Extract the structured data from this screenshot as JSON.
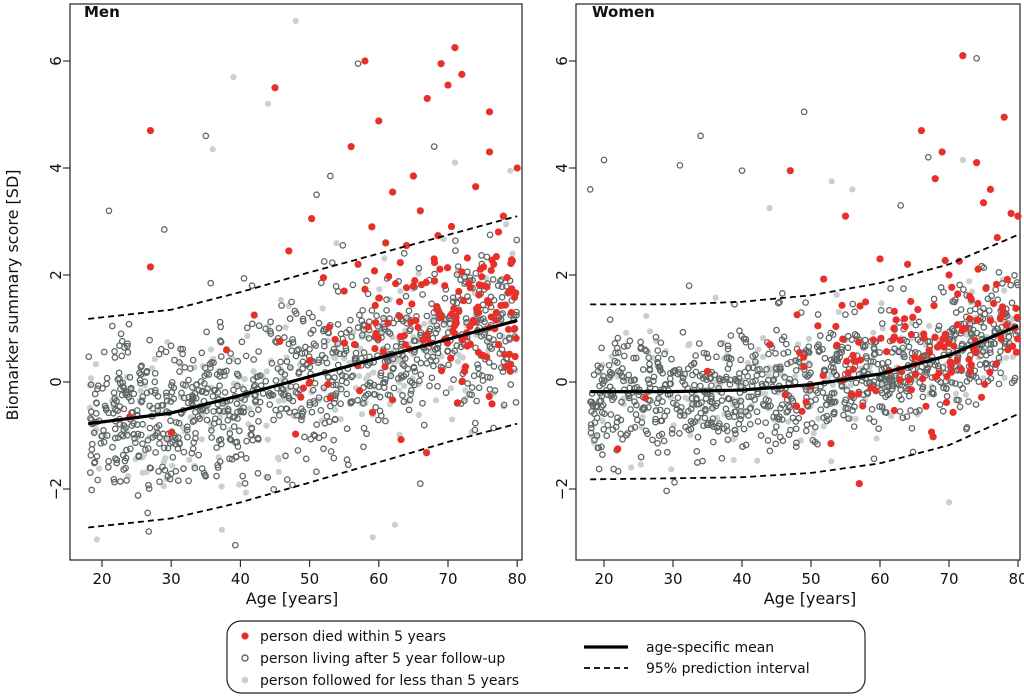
{
  "chart_data": [
    {
      "type": "scatter",
      "title": "Men",
      "xlabel": "Age [years]",
      "ylabel": "Biomarker summary score [SD]",
      "xlim": [
        16,
        82
      ],
      "ylim": [
        -3.1,
        6.9
      ],
      "x_ticks": [
        "20",
        "30",
        "40",
        "50",
        "60",
        "70",
        "80"
      ],
      "y_ticks": [
        "−2",
        "0",
        "2",
        "4",
        "6"
      ],
      "grid": false,
      "curves": {
        "age_specific_mean": {
          "x": [
            18,
            30,
            40,
            50,
            60,
            70,
            80
          ],
          "y": [
            -0.78,
            -0.58,
            -0.25,
            0.1,
            0.45,
            0.8,
            1.15
          ]
        },
        "upper_95": {
          "x": [
            18,
            30,
            40,
            50,
            60,
            70,
            80
          ],
          "y": [
            1.18,
            1.35,
            1.68,
            2.05,
            2.4,
            2.75,
            3.1
          ]
        },
        "lower_95": {
          "x": [
            18,
            30,
            40,
            50,
            60,
            70,
            80
          ],
          "y": [
            -2.72,
            -2.55,
            -2.25,
            -1.88,
            -1.5,
            -1.12,
            -0.78
          ]
        }
      },
      "died_points": {
        "x": [
          27,
          27,
          45,
          58,
          71,
          69,
          72,
          70,
          67,
          60,
          76,
          56,
          76,
          62,
          65,
          74,
          66,
          52,
          47,
          59,
          64,
          68,
          73,
          78,
          80,
          55,
          57,
          61,
          63,
          69,
          71,
          75,
          77,
          79,
          24,
          42,
          50,
          53,
          38,
          30
        ],
        "y": [
          4.7,
          2.15,
          5.5,
          6.0,
          6.25,
          5.95,
          5.75,
          5.55,
          5.3,
          4.88,
          5.05,
          4.4,
          4.3,
          3.55,
          3.85,
          3.65,
          3.2,
          1.95,
          2.45,
          2.9,
          2.55,
          2.3,
          1.85,
          3.1,
          4.0,
          1.7,
          2.2,
          2.6,
          1.5,
          1.2,
          0.9,
          0.5,
          1.3,
          0.2,
          -0.65,
          1.25,
          0.4,
          -0.3,
          0.6,
          -0.95
        ]
      },
      "living_points": {
        "x": [
          57,
          35,
          21,
          29,
          51,
          53,
          68,
          66
        ],
        "y": [
          5.95,
          4.6,
          3.2,
          2.85,
          3.5,
          3.85,
          4.4,
          -1.9
        ]
      },
      "short_followup_points": {
        "x": [
          48,
          39,
          36,
          44,
          79,
          71
        ],
        "y": [
          6.75,
          5.7,
          4.35,
          5.2,
          3.95,
          4.1
        ]
      },
      "cloud": {
        "x_range": [
          18,
          80
        ],
        "count_living": 950,
        "count_short": 240,
        "count_died": 140,
        "spread_sd": 0.72
      }
    },
    {
      "type": "scatter",
      "title": "Women",
      "xlabel": "Age [years]",
      "xlim": [
        16,
        81
      ],
      "ylim": [
        -3.1,
        6.9
      ],
      "x_ticks": [
        "20",
        "30",
        "40",
        "50",
        "60",
        "70",
        "80"
      ],
      "y_ticks": [
        "−2",
        "0",
        "2",
        "4",
        "6"
      ],
      "grid": false,
      "curves": {
        "age_specific_mean": {
          "x": [
            18,
            30,
            40,
            50,
            60,
            70,
            80
          ],
          "y": [
            -0.18,
            -0.18,
            -0.15,
            -0.05,
            0.15,
            0.5,
            1.05
          ]
        },
        "upper_95": {
          "x": [
            18,
            30,
            40,
            50,
            60,
            70,
            80
          ],
          "y": [
            1.45,
            1.45,
            1.5,
            1.62,
            1.85,
            2.2,
            2.75
          ]
        },
        "lower_95": {
          "x": [
            18,
            30,
            40,
            50,
            60,
            70,
            80
          ],
          "y": [
            -1.82,
            -1.8,
            -1.78,
            -1.7,
            -1.52,
            -1.18,
            -0.6
          ]
        }
      },
      "died_points": {
        "x": [
          72,
          78,
          66,
          69,
          47,
          68,
          74,
          76,
          75,
          79,
          80,
          55,
          60,
          64,
          70,
          73,
          77,
          62,
          57,
          44,
          26,
          35,
          22,
          51
        ],
        "y": [
          6.1,
          4.95,
          4.7,
          4.3,
          3.95,
          3.8,
          4.1,
          3.6,
          3.35,
          3.15,
          3.1,
          3.1,
          2.3,
          2.2,
          2.0,
          1.6,
          2.7,
          1.0,
          -1.9,
          0.7,
          -0.3,
          0.2,
          -1.25,
          1.05
        ]
      },
      "living_points": {
        "x": [
          74,
          49,
          20,
          34,
          40,
          18,
          31,
          63,
          67
        ],
        "y": [
          6.05,
          5.05,
          4.15,
          4.6,
          3.95,
          3.6,
          4.05,
          3.3,
          4.2
        ]
      },
      "short_followup_points": {
        "x": [
          72,
          56,
          53,
          44,
          70
        ],
        "y": [
          4.15,
          3.6,
          3.75,
          3.25,
          -2.25
        ]
      },
      "cloud": {
        "x_range": [
          18,
          80
        ],
        "count_living": 950,
        "count_short": 200,
        "count_died": 130,
        "spread_sd": 0.58
      }
    }
  ],
  "legend": {
    "died": "person died within 5 years",
    "living": "person living after 5 year follow-up",
    "short": "person followed for less than 5 years",
    "mean": "age-specific mean",
    "interval": "95% prediction interval"
  },
  "colors": {
    "died": "#e8302a",
    "living": "#5f6666",
    "short": "#c9d0cf",
    "curve": "#000000"
  }
}
